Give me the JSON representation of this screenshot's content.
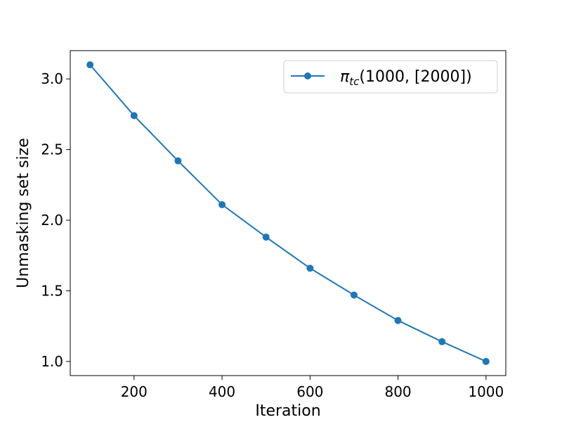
{
  "chart_data": {
    "type": "line",
    "title": "",
    "xlabel": "Iteration",
    "ylabel": "Unmasking set size",
    "xlim": [
      55,
      1045
    ],
    "ylim": [
      0.9,
      3.2
    ],
    "xticks": [
      200,
      400,
      600,
      800,
      1000
    ],
    "yticks": [
      1.0,
      1.5,
      2.0,
      2.5,
      3.0
    ],
    "grid": false,
    "legend_position": "top-right",
    "series": [
      {
        "name_main": "π",
        "name_sub": "tc",
        "name_rest": "(1000, [2000])",
        "color": "#1f77b4",
        "marker": "circle",
        "x": [
          100,
          200,
          300,
          400,
          500,
          600,
          700,
          800,
          900,
          1000
        ],
        "y": [
          3.1,
          2.74,
          2.42,
          2.11,
          1.88,
          1.66,
          1.47,
          1.29,
          1.14,
          1.0
        ]
      }
    ]
  }
}
